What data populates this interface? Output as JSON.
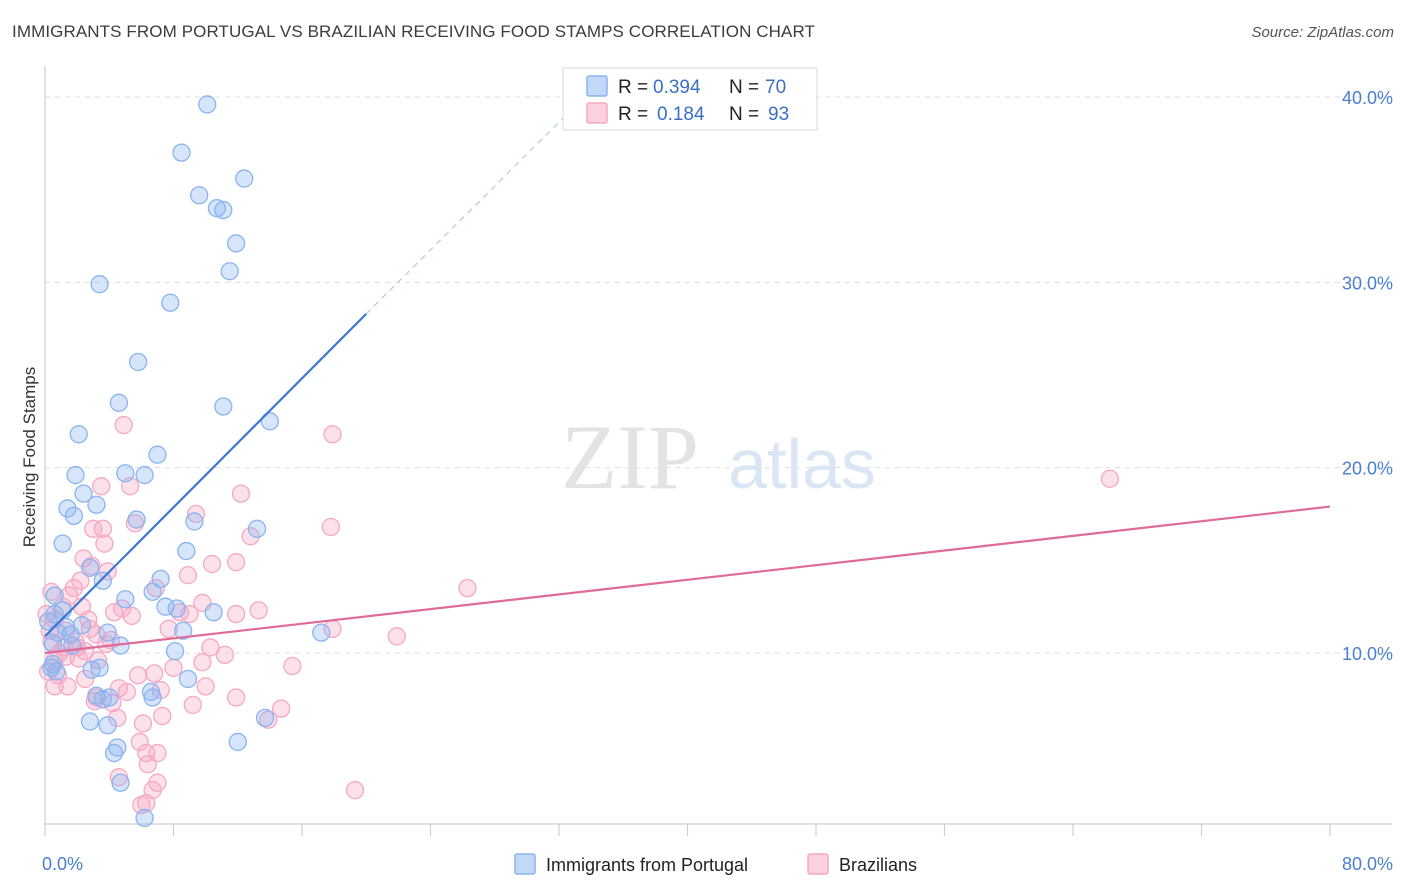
{
  "header": {
    "title": "IMMIGRANTS FROM PORTUGAL VS BRAZILIAN RECEIVING FOOD STAMPS CORRELATION CHART",
    "source": "Source: ZipAtlas.com"
  },
  "watermark": {
    "zip": "ZIP",
    "atlas": "atlas"
  },
  "legend_top": [
    {
      "r_label": "R = ",
      "r_value": "0.394",
      "n_label": "N = ",
      "n_value": "70",
      "color": "#8ab4f0"
    },
    {
      "r_label": "R = ",
      "r_value": "0.184",
      "n_label": "N = ",
      "n_value": "93",
      "color": "#f5a8c3"
    }
  ],
  "legend_bottom": [
    {
      "label": "Immigrants from Portugal",
      "color": "#8ab4f0"
    },
    {
      "label": "Brazilians",
      "color": "#f5a8c3"
    }
  ],
  "chart_data": {
    "type": "scatter",
    "title": "IMMIGRANTS FROM PORTUGAL VS BRAZILIAN RECEIVING FOOD STAMPS CORRELATION CHART",
    "xlabel": "",
    "ylabel": "Receiving Food Stamps",
    "xlim": [
      0,
      80
    ],
    "ylim": [
      0,
      42
    ],
    "x_tick_labels": [
      "0.0%",
      "80.0%"
    ],
    "y_ticks": [
      10,
      20,
      30,
      40
    ],
    "y_tick_labels": [
      "10.0%",
      "20.0%",
      "30.0%",
      "40.0%"
    ],
    "grid": true,
    "legend_position": "top-center",
    "series": [
      {
        "name": "Immigrants from Portugal",
        "color": "#8ab4f0",
        "line_color": "#3a78d4",
        "trend": {
          "x": [
            0,
            20
          ],
          "y": [
            10.9,
            28.3
          ],
          "dashed_to": [
            33,
            39.5
          ]
        },
        "points": [
          [
            10.1,
            39.6
          ],
          [
            8.5,
            37.0
          ],
          [
            12.4,
            35.6
          ],
          [
            9.6,
            34.7
          ],
          [
            10.7,
            34.0
          ],
          [
            11.1,
            33.9
          ],
          [
            11.9,
            32.1
          ],
          [
            11.5,
            30.6
          ],
          [
            3.4,
            29.9
          ],
          [
            7.8,
            28.9
          ],
          [
            5.8,
            25.7
          ],
          [
            4.6,
            23.5
          ],
          [
            11.1,
            23.3
          ],
          [
            14.0,
            22.5
          ],
          [
            2.1,
            21.8
          ],
          [
            7.0,
            20.7
          ],
          [
            1.9,
            19.6
          ],
          [
            5.0,
            19.7
          ],
          [
            6.2,
            19.6
          ],
          [
            2.4,
            18.6
          ],
          [
            1.4,
            17.8
          ],
          [
            3.2,
            18.0
          ],
          [
            1.8,
            17.4
          ],
          [
            5.7,
            17.2
          ],
          [
            9.3,
            17.1
          ],
          [
            13.2,
            16.7
          ],
          [
            1.1,
            15.9
          ],
          [
            8.8,
            15.5
          ],
          [
            2.8,
            14.6
          ],
          [
            3.6,
            13.9
          ],
          [
            7.2,
            14.0
          ],
          [
            0.6,
            13.1
          ],
          [
            6.7,
            13.3
          ],
          [
            1.1,
            12.3
          ],
          [
            0.6,
            12.1
          ],
          [
            8.2,
            12.4
          ],
          [
            1.3,
            11.4
          ],
          [
            2.3,
            11.5
          ],
          [
            0.8,
            11.1
          ],
          [
            1.6,
            11.0
          ],
          [
            0.2,
            11.7
          ],
          [
            3.9,
            11.1
          ],
          [
            8.6,
            11.2
          ],
          [
            17.2,
            11.1
          ],
          [
            0.5,
            10.5
          ],
          [
            1.7,
            10.4
          ],
          [
            4.7,
            10.4
          ],
          [
            8.1,
            10.1
          ],
          [
            0.5,
            9.4
          ],
          [
            0.4,
            9.2
          ],
          [
            2.9,
            9.1
          ],
          [
            3.4,
            9.2
          ],
          [
            0.7,
            9.0
          ],
          [
            8.9,
            8.6
          ],
          [
            3.2,
            7.7
          ],
          [
            4.0,
            7.6
          ],
          [
            3.6,
            7.5
          ],
          [
            6.6,
            7.9
          ],
          [
            6.7,
            7.6
          ],
          [
            2.8,
            6.3
          ],
          [
            3.9,
            6.1
          ],
          [
            13.7,
            6.5
          ],
          [
            12.0,
            5.2
          ],
          [
            4.5,
            4.9
          ],
          [
            4.3,
            4.6
          ],
          [
            4.7,
            3.0
          ],
          [
            6.2,
            1.1
          ],
          [
            7.5,
            12.5
          ],
          [
            5.0,
            12.9
          ],
          [
            10.5,
            12.2
          ]
        ]
      },
      {
        "name": "Brazilians",
        "color": "#f5a8c3",
        "line_color": "#e06b98",
        "trend": {
          "x": [
            0,
            80
          ],
          "y": [
            10.0,
            17.9
          ]
        },
        "points": [
          [
            4.9,
            22.3
          ],
          [
            17.9,
            21.8
          ],
          [
            66.3,
            19.4
          ],
          [
            3.5,
            19.0
          ],
          [
            5.3,
            19.0
          ],
          [
            12.2,
            18.6
          ],
          [
            9.4,
            17.5
          ],
          [
            5.6,
            17.0
          ],
          [
            17.8,
            16.8
          ],
          [
            3.0,
            16.7
          ],
          [
            3.6,
            16.7
          ],
          [
            3.7,
            15.9
          ],
          [
            2.4,
            15.1
          ],
          [
            10.4,
            14.8
          ],
          [
            11.9,
            14.9
          ],
          [
            2.9,
            14.7
          ],
          [
            3.9,
            14.4
          ],
          [
            8.9,
            14.2
          ],
          [
            0.4,
            13.3
          ],
          [
            1.8,
            13.5
          ],
          [
            6.9,
            13.5
          ],
          [
            26.3,
            13.5
          ],
          [
            1.1,
            12.5
          ],
          [
            2.3,
            12.5
          ],
          [
            4.3,
            12.2
          ],
          [
            4.8,
            12.4
          ],
          [
            8.4,
            12.2
          ],
          [
            9.0,
            12.1
          ],
          [
            11.9,
            12.1
          ],
          [
            13.3,
            12.3
          ],
          [
            0.1,
            12.1
          ],
          [
            0.6,
            11.8
          ],
          [
            1.3,
            11.2
          ],
          [
            2.7,
            11.8
          ],
          [
            17.9,
            11.3
          ],
          [
            0.3,
            11.2
          ],
          [
            1.9,
            10.6
          ],
          [
            3.2,
            11.0
          ],
          [
            1.2,
            10.3
          ],
          [
            2.0,
            10.3
          ],
          [
            2.5,
            10.1
          ],
          [
            3.8,
            10.5
          ],
          [
            10.3,
            10.3
          ],
          [
            21.9,
            10.9
          ],
          [
            0.6,
            9.6
          ],
          [
            1.3,
            9.8
          ],
          [
            2.1,
            9.7
          ],
          [
            9.8,
            9.5
          ],
          [
            15.4,
            9.3
          ],
          [
            0.2,
            9.0
          ],
          [
            0.8,
            8.8
          ],
          [
            2.5,
            8.6
          ],
          [
            5.8,
            8.8
          ],
          [
            6.8,
            8.9
          ],
          [
            0.6,
            8.2
          ],
          [
            1.4,
            8.2
          ],
          [
            4.6,
            8.1
          ],
          [
            5.1,
            7.9
          ],
          [
            7.2,
            8.0
          ],
          [
            3.1,
            7.4
          ],
          [
            4.2,
            7.3
          ],
          [
            11.9,
            7.6
          ],
          [
            9.2,
            7.2
          ],
          [
            14.7,
            7.0
          ],
          [
            4.5,
            6.5
          ],
          [
            7.3,
            6.6
          ],
          [
            13.9,
            6.4
          ],
          [
            5.9,
            5.2
          ],
          [
            6.3,
            4.6
          ],
          [
            7.0,
            4.6
          ],
          [
            6.4,
            4.0
          ],
          [
            4.6,
            3.3
          ],
          [
            7.0,
            3.0
          ],
          [
            6.7,
            2.6
          ],
          [
            19.3,
            2.6
          ],
          [
            6.3,
            1.9
          ],
          [
            6.0,
            1.8
          ],
          [
            3.2,
            7.6
          ],
          [
            2.2,
            13.9
          ],
          [
            12.8,
            16.3
          ],
          [
            5.4,
            12.0
          ],
          [
            7.7,
            11.3
          ],
          [
            0.9,
            10.0
          ],
          [
            3.3,
            9.6
          ],
          [
            9.8,
            12.7
          ],
          [
            8.0,
            9.2
          ],
          [
            4.1,
            10.7
          ],
          [
            1.5,
            13.1
          ],
          [
            2.8,
            11.3
          ],
          [
            11.2,
            9.9
          ],
          [
            0.4,
            10.6
          ],
          [
            6.1,
            6.2
          ],
          [
            10.0,
            8.2
          ]
        ]
      }
    ]
  }
}
